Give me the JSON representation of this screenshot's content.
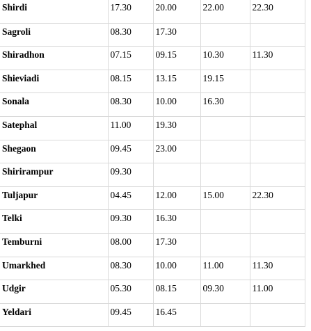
{
  "rows": [
    {
      "place": "Shirdi",
      "times": [
        "17.30",
        "20.00",
        "22.00",
        "22.30"
      ]
    },
    {
      "place": "Sagroli",
      "times": [
        "08.30",
        "17.30",
        "",
        ""
      ]
    },
    {
      "place": "Shiradhon",
      "times": [
        "07.15",
        "09.15",
        "10.30",
        "11.30"
      ]
    },
    {
      "place": "Shieviadi",
      "times": [
        "08.15",
        "13.15",
        "19.15",
        ""
      ]
    },
    {
      "place": "Sonala",
      "times": [
        "08.30",
        "10.00",
        "16.30",
        ""
      ]
    },
    {
      "place": "Satephal",
      "times": [
        "11.00",
        "19.30",
        "",
        ""
      ]
    },
    {
      "place": "Shegaon",
      "times": [
        "09.45",
        "23.00",
        "",
        ""
      ]
    },
    {
      "place": "Shirirampur",
      "times": [
        "09.30",
        "",
        "",
        ""
      ]
    },
    {
      "place": "Tuljapur",
      "times": [
        "04.45",
        "12.00",
        "15.00",
        "22.30"
      ]
    },
    {
      "place": "Telki",
      "times": [
        "09.30",
        "16.30",
        "",
        ""
      ]
    },
    {
      "place": "Temburni",
      "times": [
        "08.00",
        "17.30",
        "",
        ""
      ]
    },
    {
      "place": "Umarkhed",
      "times": [
        "08.30",
        "10.00",
        "11.00",
        "11.30"
      ]
    },
    {
      "place": "Udgir",
      "times": [
        "05.30",
        "08.15",
        "09.30",
        "11.00"
      ]
    },
    {
      "place": "Yeldari",
      "times": [
        "09.45",
        "16.45",
        "",
        ""
      ]
    }
  ]
}
